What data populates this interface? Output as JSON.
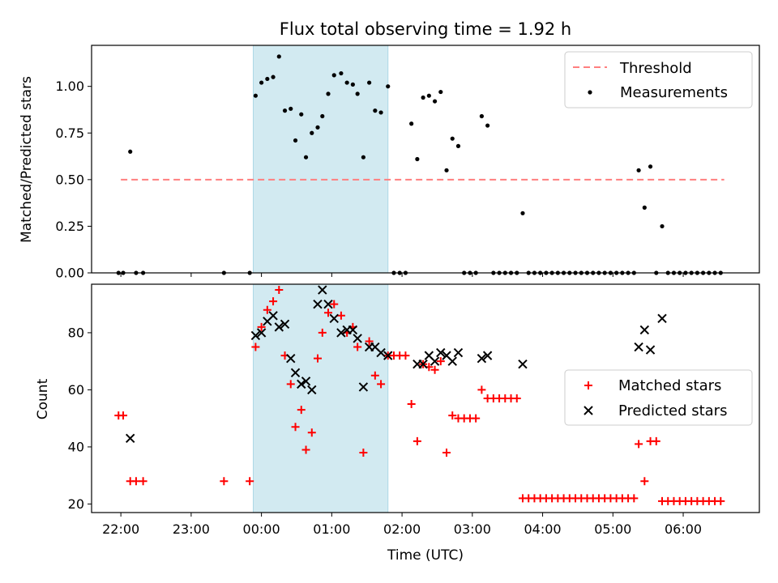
{
  "chart_data": [
    {
      "type": "scatter",
      "title": "Flux total observing time = 1.92 h",
      "xlabel": "",
      "ylabel": "Matched/Predicted stars",
      "ylim": [
        0,
        1.22
      ],
      "yticks": [
        0.0,
        0.25,
        0.5,
        0.75,
        1.0
      ],
      "ytick_labels": [
        "0.00",
        "0.25",
        "0.50",
        "0.75",
        "1.00"
      ],
      "shaded_span": {
        "start": "23:53",
        "end": "01:48"
      },
      "threshold": {
        "name": "Threshold",
        "value": 0.5,
        "from": "22:00",
        "to": "06:35",
        "color": "#ff7f7f"
      },
      "legend": {
        "placement": "top-right",
        "entries": [
          "Threshold",
          "Measurements"
        ]
      },
      "series": [
        {
          "name": "Measurements",
          "color": "#000000",
          "marker": "dot",
          "points": [
            [
              "21:58",
              0.0
            ],
            [
              "22:02",
              0.0
            ],
            [
              "22:08",
              0.65
            ],
            [
              "22:13",
              0.0
            ],
            [
              "22:19",
              0.0
            ],
            [
              "23:28",
              0.0
            ],
            [
              "23:50",
              0.0
            ],
            [
              "23:55",
              0.95
            ],
            [
              "24:00",
              1.02
            ],
            [
              "24:05",
              1.04
            ],
            [
              "24:10",
              1.05
            ],
            [
              "24:15",
              1.16
            ],
            [
              "24:20",
              0.87
            ],
            [
              "24:25",
              0.88
            ],
            [
              "24:29",
              0.71
            ],
            [
              "24:34",
              0.85
            ],
            [
              "24:38",
              0.62
            ],
            [
              "24:43",
              0.75
            ],
            [
              "24:48",
              0.78
            ],
            [
              "24:52",
              0.84
            ],
            [
              "24:57",
              0.96
            ],
            [
              "25:02",
              1.06
            ],
            [
              "25:08",
              1.07
            ],
            [
              "25:13",
              1.02
            ],
            [
              "25:18",
              1.01
            ],
            [
              "25:22",
              0.96
            ],
            [
              "25:27",
              0.62
            ],
            [
              "25:32",
              1.02
            ],
            [
              "25:37",
              0.87
            ],
            [
              "25:42",
              0.86
            ],
            [
              "25:48",
              1.0
            ],
            [
              "25:53",
              0.0
            ],
            [
              "25:58",
              0.0
            ],
            [
              "26:03",
              0.0
            ],
            [
              "26:08",
              0.8
            ],
            [
              "26:13",
              0.61
            ],
            [
              "26:18",
              0.94
            ],
            [
              "26:23",
              0.95
            ],
            [
              "26:28",
              0.92
            ],
            [
              "26:33",
              0.97
            ],
            [
              "26:38",
              0.55
            ],
            [
              "26:43",
              0.72
            ],
            [
              "26:48",
              0.68
            ],
            [
              "26:53",
              0.0
            ],
            [
              "26:58",
              0.0
            ],
            [
              "27:03",
              0.0
            ],
            [
              "27:08",
              0.84
            ],
            [
              "27:13",
              0.79
            ],
            [
              "27:18",
              0.0
            ],
            [
              "27:23",
              0.0
            ],
            [
              "27:28",
              0.0
            ],
            [
              "27:33",
              0.0
            ],
            [
              "27:38",
              0.0
            ],
            [
              "27:43",
              0.32
            ],
            [
              "27:48",
              0.0
            ],
            [
              "27:53",
              0.0
            ],
            [
              "27:58",
              0.0
            ],
            [
              "28:03",
              0.0
            ],
            [
              "28:08",
              0.0
            ],
            [
              "28:13",
              0.0
            ],
            [
              "28:18",
              0.0
            ],
            [
              "28:23",
              0.0
            ],
            [
              "28:28",
              0.0
            ],
            [
              "28:33",
              0.0
            ],
            [
              "28:38",
              0.0
            ],
            [
              "28:43",
              0.0
            ],
            [
              "28:48",
              0.0
            ],
            [
              "28:53",
              0.0
            ],
            [
              "28:58",
              0.0
            ],
            [
              "29:03",
              0.0
            ],
            [
              "29:08",
              0.0
            ],
            [
              "29:13",
              0.0
            ],
            [
              "29:18",
              0.0
            ],
            [
              "29:22",
              0.55
            ],
            [
              "29:27",
              0.35
            ],
            [
              "29:32",
              0.57
            ],
            [
              "29:37",
              0.0
            ],
            [
              "29:42",
              0.25
            ],
            [
              "29:47",
              0.0
            ],
            [
              "29:52",
              0.0
            ],
            [
              "29:57",
              0.0
            ],
            [
              "30:02",
              0.0
            ],
            [
              "30:07",
              0.0
            ],
            [
              "30:12",
              0.0
            ],
            [
              "30:17",
              0.0
            ],
            [
              "30:22",
              0.0
            ],
            [
              "30:27",
              0.0
            ],
            [
              "30:32",
              0.0
            ]
          ]
        }
      ]
    },
    {
      "type": "scatter",
      "title": "",
      "xlabel": "Time (UTC)",
      "ylabel": "Count",
      "ylim": [
        17,
        97
      ],
      "yticks": [
        20,
        40,
        60,
        80
      ],
      "ytick_labels": [
        "20",
        "40",
        "60",
        "80"
      ],
      "xticks": [
        "22:00",
        "23:00",
        "00:00",
        "01:00",
        "02:00",
        "03:00",
        "04:00",
        "05:00",
        "06:00"
      ],
      "xlim": [
        "21:35",
        "31:05"
      ],
      "shaded_span": {
        "start": "23:53",
        "end": "01:48"
      },
      "legend": {
        "placement": "center-right",
        "entries": [
          "Matched stars",
          "Predicted stars"
        ]
      },
      "series": [
        {
          "name": "Matched stars",
          "color": "#ff0000",
          "marker": "plus",
          "points": [
            [
              "21:58",
              51
            ],
            [
              "22:02",
              51
            ],
            [
              "22:08",
              28
            ],
            [
              "22:13",
              28
            ],
            [
              "22:19",
              28
            ],
            [
              "23:28",
              28
            ],
            [
              "23:50",
              28
            ],
            [
              "23:55",
              75
            ],
            [
              "24:00",
              82
            ],
            [
              "24:05",
              88
            ],
            [
              "24:10",
              91
            ],
            [
              "24:15",
              95
            ],
            [
              "24:20",
              72
            ],
            [
              "24:25",
              62
            ],
            [
              "24:29",
              47
            ],
            [
              "24:34",
              53
            ],
            [
              "24:38",
              39
            ],
            [
              "24:43",
              45
            ],
            [
              "24:48",
              71
            ],
            [
              "24:52",
              80
            ],
            [
              "24:57",
              87
            ],
            [
              "25:02",
              90
            ],
            [
              "25:08",
              86
            ],
            [
              "25:13",
              80
            ],
            [
              "25:18",
              82
            ],
            [
              "25:22",
              75
            ],
            [
              "25:27",
              38
            ],
            [
              "25:32",
              77
            ],
            [
              "25:37",
              65
            ],
            [
              "25:42",
              62
            ],
            [
              "25:48",
              72
            ],
            [
              "25:53",
              72
            ],
            [
              "25:58",
              72
            ],
            [
              "26:03",
              72
            ],
            [
              "26:08",
              55
            ],
            [
              "26:13",
              42
            ],
            [
              "26:18",
              69
            ],
            [
              "26:23",
              68
            ],
            [
              "26:28",
              67
            ],
            [
              "26:33",
              70
            ],
            [
              "26:38",
              38
            ],
            [
              "26:43",
              51
            ],
            [
              "26:48",
              50
            ],
            [
              "26:53",
              50
            ],
            [
              "26:58",
              50
            ],
            [
              "27:03",
              50
            ],
            [
              "27:08",
              60
            ],
            [
              "27:13",
              57
            ],
            [
              "27:18",
              57
            ],
            [
              "27:23",
              57
            ],
            [
              "27:28",
              57
            ],
            [
              "27:33",
              57
            ],
            [
              "27:38",
              57
            ],
            [
              "27:43",
              22
            ],
            [
              "27:48",
              22
            ],
            [
              "27:53",
              22
            ],
            [
              "27:58",
              22
            ],
            [
              "28:03",
              22
            ],
            [
              "28:08",
              22
            ],
            [
              "28:13",
              22
            ],
            [
              "28:18",
              22
            ],
            [
              "28:23",
              22
            ],
            [
              "28:28",
              22
            ],
            [
              "28:33",
              22
            ],
            [
              "28:38",
              22
            ],
            [
              "28:43",
              22
            ],
            [
              "28:48",
              22
            ],
            [
              "28:53",
              22
            ],
            [
              "28:58",
              22
            ],
            [
              "29:03",
              22
            ],
            [
              "29:08",
              22
            ],
            [
              "29:13",
              22
            ],
            [
              "29:18",
              22
            ],
            [
              "29:22",
              41
            ],
            [
              "29:27",
              28
            ],
            [
              "29:32",
              42
            ],
            [
              "29:37",
              42
            ],
            [
              "29:42",
              21
            ],
            [
              "29:47",
              21
            ],
            [
              "29:52",
              21
            ],
            [
              "29:57",
              21
            ],
            [
              "30:02",
              21
            ],
            [
              "30:07",
              21
            ],
            [
              "30:12",
              21
            ],
            [
              "30:17",
              21
            ],
            [
              "30:22",
              21
            ],
            [
              "30:27",
              21
            ],
            [
              "30:32",
              21
            ]
          ]
        },
        {
          "name": "Predicted stars",
          "color": "#000000",
          "marker": "x",
          "points": [
            [
              "22:08",
              43
            ],
            [
              "23:55",
              79
            ],
            [
              "24:00",
              80
            ],
            [
              "24:05",
              84
            ],
            [
              "24:10",
              86
            ],
            [
              "24:15",
              82
            ],
            [
              "24:20",
              83
            ],
            [
              "24:25",
              71
            ],
            [
              "24:29",
              66
            ],
            [
              "24:34",
              62
            ],
            [
              "24:38",
              63
            ],
            [
              "24:43",
              60
            ],
            [
              "24:48",
              90
            ],
            [
              "24:52",
              95
            ],
            [
              "24:57",
              90
            ],
            [
              "25:02",
              85
            ],
            [
              "25:08",
              80
            ],
            [
              "25:13",
              81
            ],
            [
              "25:18",
              81
            ],
            [
              "25:22",
              78
            ],
            [
              "25:27",
              61
            ],
            [
              "25:32",
              75
            ],
            [
              "25:37",
              75
            ],
            [
              "25:42",
              73
            ],
            [
              "25:48",
              72
            ],
            [
              "26:13",
              69
            ],
            [
              "26:18",
              69
            ],
            [
              "26:23",
              72
            ],
            [
              "26:28",
              70
            ],
            [
              "26:33",
              73
            ],
            [
              "26:38",
              72
            ],
            [
              "26:43",
              70
            ],
            [
              "26:48",
              73
            ],
            [
              "27:08",
              71
            ],
            [
              "27:13",
              72
            ],
            [
              "27:43",
              69
            ],
            [
              "29:22",
              75
            ],
            [
              "29:27",
              81
            ],
            [
              "29:32",
              74
            ],
            [
              "29:42",
              85
            ]
          ]
        }
      ]
    }
  ]
}
